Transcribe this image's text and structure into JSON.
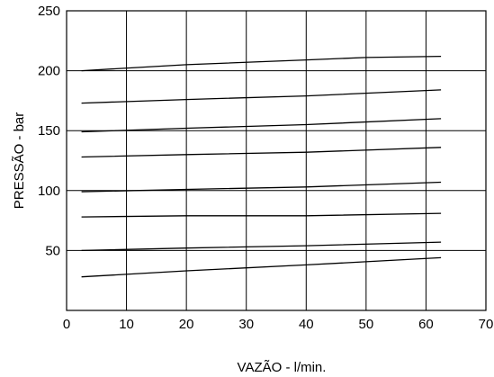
{
  "chart_data": {
    "type": "line",
    "title": "",
    "xlabel": "VAZÃO - l/min.",
    "ylabel": "PRESSÃO - bar",
    "xlim": [
      0,
      70
    ],
    "ylim": [
      0,
      250
    ],
    "x_ticks": [
      0,
      10,
      20,
      30,
      40,
      50,
      60,
      70
    ],
    "y_ticks": [
      50,
      100,
      150,
      200,
      250
    ],
    "grid": true,
    "legend": "none",
    "line_color": "#000000",
    "series": [
      {
        "points": [
          [
            2.5,
            200
          ],
          [
            20,
            205
          ],
          [
            40,
            209
          ],
          [
            50,
            211
          ],
          [
            62.5,
            212
          ]
        ]
      },
      {
        "points": [
          [
            2.5,
            173
          ],
          [
            20,
            176
          ],
          [
            40,
            179
          ],
          [
            62.5,
            184
          ]
        ]
      },
      {
        "points": [
          [
            2.5,
            149
          ],
          [
            20,
            152
          ],
          [
            40,
            155
          ],
          [
            62.5,
            160
          ]
        ]
      },
      {
        "points": [
          [
            2.5,
            128
          ],
          [
            20,
            130
          ],
          [
            40,
            132
          ],
          [
            62.5,
            136
          ]
        ]
      },
      {
        "points": [
          [
            2.5,
            99
          ],
          [
            20,
            101
          ],
          [
            40,
            103
          ],
          [
            62.5,
            107
          ]
        ]
      },
      {
        "points": [
          [
            2.5,
            78
          ],
          [
            20,
            79
          ],
          [
            40,
            79
          ],
          [
            62.5,
            81
          ]
        ]
      },
      {
        "points": [
          [
            2.5,
            50
          ],
          [
            20,
            52
          ],
          [
            40,
            54
          ],
          [
            62.5,
            57
          ]
        ]
      },
      {
        "points": [
          [
            2.5,
            28
          ],
          [
            20,
            33
          ],
          [
            40,
            38
          ],
          [
            62.5,
            44
          ]
        ]
      }
    ]
  }
}
